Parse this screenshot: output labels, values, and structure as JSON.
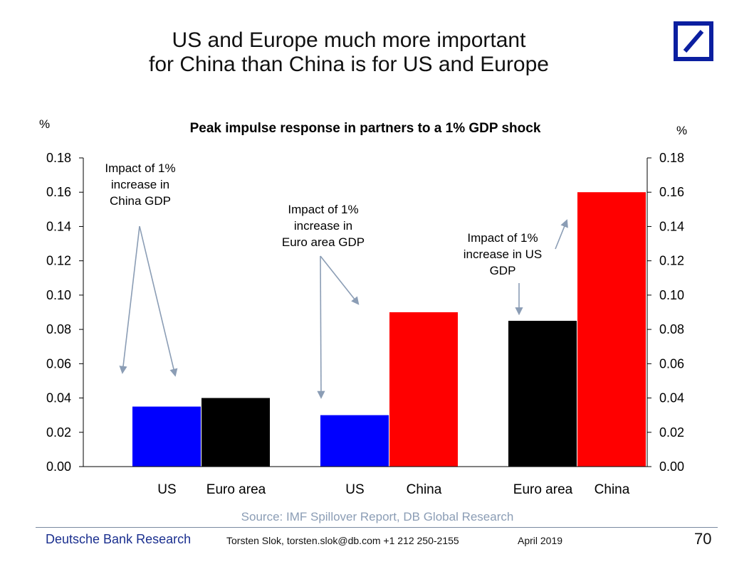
{
  "slide": {
    "title_line1": "US and Europe much more important",
    "title_line2": "for China than China is for US and Europe"
  },
  "footer": {
    "org": "Deutsche Bank Research",
    "author": "Torsten Slok, torsten.slok@db.com  +1 212 250-2155",
    "date": "April 2019",
    "page": "70"
  },
  "colors": {
    "blue": "#0000ff",
    "black": "#000000",
    "red": "#ff0000",
    "arrow": "#8b9db5",
    "logo_blue": "#0b1fa0",
    "source_text": "#8b9db5"
  },
  "chart_data": {
    "type": "bar",
    "title": "Peak impulse response in partners to a 1% GDP shock",
    "ylabel_left": "%",
    "ylabel_right": "%",
    "ylim": [
      0,
      0.18
    ],
    "yticks": [
      "0.00",
      "0.02",
      "0.04",
      "0.06",
      "0.08",
      "0.10",
      "0.12",
      "0.14",
      "0.16",
      "0.18"
    ],
    "groups": [
      {
        "annotation": [
          "Impact of 1%",
          "increase in",
          "China GDP"
        ],
        "bars": [
          {
            "category": "US",
            "value": 0.035,
            "color": "#0000ff"
          },
          {
            "category": "Euro area",
            "value": 0.04,
            "color": "#000000"
          }
        ]
      },
      {
        "annotation": [
          "Impact of 1%",
          "increase in",
          "Euro area GDP"
        ],
        "bars": [
          {
            "category": "US",
            "value": 0.03,
            "color": "#0000ff"
          },
          {
            "category": "China",
            "value": 0.09,
            "color": "#ff0000"
          }
        ]
      },
      {
        "annotation": [
          "Impact of 1%",
          "increase in US",
          "GDP"
        ],
        "bars": [
          {
            "category": "Euro area",
            "value": 0.085,
            "color": "#000000"
          },
          {
            "category": "China",
            "value": 0.16,
            "color": "#ff0000"
          }
        ]
      }
    ],
    "source": "Source: IMF Spillover Report, DB Global Research",
    "grid": false
  }
}
